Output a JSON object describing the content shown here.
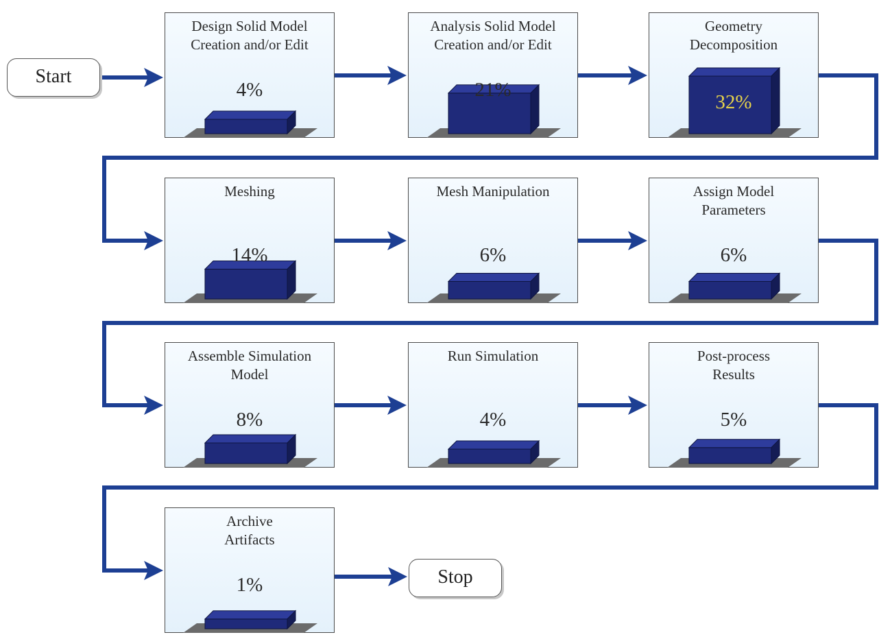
{
  "start_label": "Start",
  "stop_label": "Stop",
  "colors": {
    "arrow": "#1d3f93",
    "bar_front": "#1f2a7a",
    "bar_top": "#2e3c9c",
    "bar_side": "#141c55",
    "base": "#6b6b6b",
    "pct_in_bar": "#e8d44a"
  },
  "steps": [
    {
      "title": "Design Solid Model\nCreation and/or Edit",
      "percent": "4%",
      "value": 4
    },
    {
      "title": "Analysis Solid Model\nCreation and/or Edit",
      "percent": "21%",
      "value": 21
    },
    {
      "title": "Geometry\nDecomposition",
      "percent": "32%",
      "value": 32
    },
    {
      "title": "Meshing",
      "percent": "14%",
      "value": 14
    },
    {
      "title": "Mesh Manipulation",
      "percent": "6%",
      "value": 6
    },
    {
      "title": "Assign Model\nParameters",
      "percent": "6%",
      "value": 6
    },
    {
      "title": "Assemble Simulation\nModel",
      "percent": "8%",
      "value": 8
    },
    {
      "title": "Run Simulation",
      "percent": "4%",
      "value": 4
    },
    {
      "title": "Post-process\nResults",
      "percent": "5%",
      "value": 5
    },
    {
      "title": "Archive\nArtifacts",
      "percent": "1%",
      "value": 1
    }
  ]
}
